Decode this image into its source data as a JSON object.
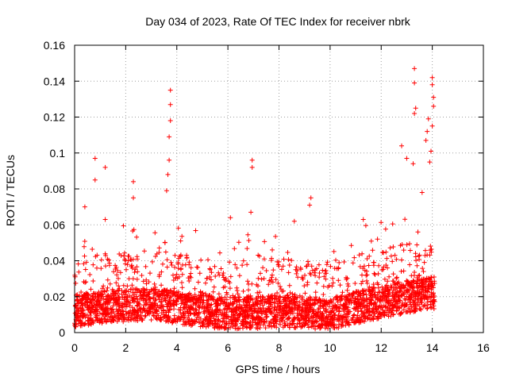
{
  "chart_data": {
    "type": "scatter",
    "title": "Day 034 of 2023, Rate Of TEC Index for receiver nbrk",
    "xlabel": "GPS time / hours",
    "ylabel": "ROTI / TECUs",
    "xlim": [
      0,
      16
    ],
    "ylim": [
      0,
      0.16
    ],
    "xticks": [
      0,
      2,
      4,
      6,
      8,
      10,
      12,
      14,
      16
    ],
    "yticks": [
      0,
      0.02,
      0.04,
      0.06,
      0.08,
      0.1,
      0.12,
      0.14,
      0.16
    ],
    "xtick_labels": [
      "0",
      "2",
      "4",
      "6",
      "8",
      "10",
      "12",
      "14",
      "16"
    ],
    "ytick_labels": [
      "0",
      "0.02",
      "0.04",
      "0.06",
      "0.08",
      "0.1",
      "0.12",
      "0.14",
      "0.16"
    ],
    "grid": true,
    "marker": "+",
    "color": "#ff0000",
    "x_data_range": [
      0,
      14.1
    ],
    "baseline": [
      {
        "x": 0.0,
        "y": 0.012
      },
      {
        "x": 1.0,
        "y": 0.014
      },
      {
        "x": 2.0,
        "y": 0.015
      },
      {
        "x": 3.0,
        "y": 0.016
      },
      {
        "x": 4.0,
        "y": 0.014
      },
      {
        "x": 5.0,
        "y": 0.012
      },
      {
        "x": 6.0,
        "y": 0.011
      },
      {
        "x": 7.0,
        "y": 0.011
      },
      {
        "x": 8.0,
        "y": 0.012
      },
      {
        "x": 9.0,
        "y": 0.011
      },
      {
        "x": 10.0,
        "y": 0.01
      },
      {
        "x": 11.0,
        "y": 0.014
      },
      {
        "x": 12.0,
        "y": 0.017
      },
      {
        "x": 13.0,
        "y": 0.02
      },
      {
        "x": 14.0,
        "y": 0.022
      }
    ],
    "point_count": 3000,
    "notable_points": [
      {
        "x": 0.8,
        "y": 0.097
      },
      {
        "x": 0.8,
        "y": 0.085
      },
      {
        "x": 1.2,
        "y": 0.092
      },
      {
        "x": 1.2,
        "y": 0.063
      },
      {
        "x": 0.4,
        "y": 0.07
      },
      {
        "x": 2.3,
        "y": 0.084
      },
      {
        "x": 2.3,
        "y": 0.075
      },
      {
        "x": 3.75,
        "y": 0.135
      },
      {
        "x": 3.75,
        "y": 0.127
      },
      {
        "x": 3.75,
        "y": 0.118
      },
      {
        "x": 3.7,
        "y": 0.109
      },
      {
        "x": 3.7,
        "y": 0.096
      },
      {
        "x": 3.65,
        "y": 0.088
      },
      {
        "x": 3.6,
        "y": 0.079
      },
      {
        "x": 6.95,
        "y": 0.096
      },
      {
        "x": 6.95,
        "y": 0.092
      },
      {
        "x": 6.9,
        "y": 0.067
      },
      {
        "x": 6.1,
        "y": 0.064
      },
      {
        "x": 9.25,
        "y": 0.075
      },
      {
        "x": 9.2,
        "y": 0.071
      },
      {
        "x": 8.6,
        "y": 0.062
      },
      {
        "x": 11.3,
        "y": 0.063
      },
      {
        "x": 12.8,
        "y": 0.104
      },
      {
        "x": 13.0,
        "y": 0.097
      },
      {
        "x": 13.3,
        "y": 0.147
      },
      {
        "x": 13.3,
        "y": 0.139
      },
      {
        "x": 13.35,
        "y": 0.125
      },
      {
        "x": 13.3,
        "y": 0.122
      },
      {
        "x": 13.25,
        "y": 0.094
      },
      {
        "x": 13.6,
        "y": 0.078
      },
      {
        "x": 13.85,
        "y": 0.119
      },
      {
        "x": 13.8,
        "y": 0.112
      },
      {
        "x": 13.75,
        "y": 0.107
      },
      {
        "x": 14.0,
        "y": 0.142
      },
      {
        "x": 14.0,
        "y": 0.138
      },
      {
        "x": 14.05,
        "y": 0.131
      },
      {
        "x": 14.05,
        "y": 0.126
      },
      {
        "x": 14.0,
        "y": 0.115
      },
      {
        "x": 13.95,
        "y": 0.101
      },
      {
        "x": 13.9,
        "y": 0.095
      }
    ]
  }
}
